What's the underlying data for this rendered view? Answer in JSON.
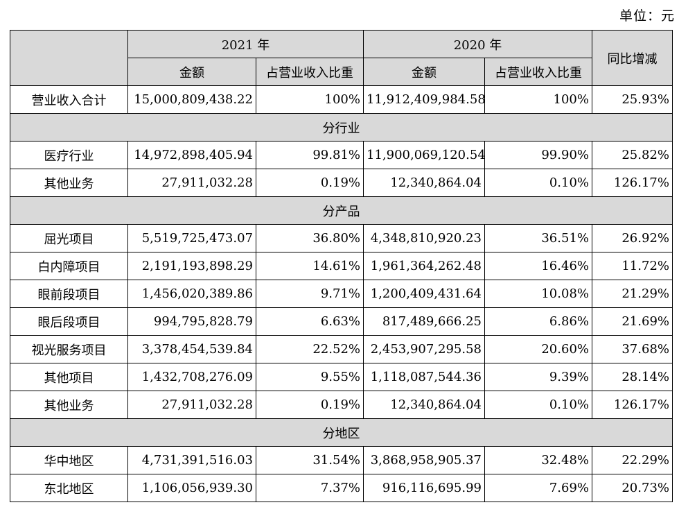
{
  "unit_label": "单位：元",
  "headers": {
    "year_2021": "2021 年",
    "year_2020": "2020 年",
    "amount": "金额",
    "share": "占营业收入比重",
    "yoy": "同比增减"
  },
  "total": {
    "label": "营业收入合计",
    "amt_2021": "15,000,809,438.22",
    "pct_2021": "100%",
    "amt_2020": "11,912,409,984.58",
    "pct_2020": "100%",
    "yoy": "25.93%"
  },
  "sections": [
    {
      "title": "分行业",
      "rows": [
        {
          "label": "医疗行业",
          "amt_2021": "14,972,898,405.94",
          "pct_2021": "99.81%",
          "amt_2020": "11,900,069,120.54",
          "pct_2020": "99.90%",
          "yoy": "25.82%"
        },
        {
          "label": "其他业务",
          "amt_2021": "27,911,032.28",
          "pct_2021": "0.19%",
          "amt_2020": "12,340,864.04",
          "pct_2020": "0.10%",
          "yoy": "126.17%"
        }
      ]
    },
    {
      "title": "分产品",
      "rows": [
        {
          "label": "屈光项目",
          "amt_2021": "5,519,725,473.07",
          "pct_2021": "36.80%",
          "amt_2020": "4,348,810,920.23",
          "pct_2020": "36.51%",
          "yoy": "26.92%"
        },
        {
          "label": "白内障项目",
          "amt_2021": "2,191,193,898.29",
          "pct_2021": "14.61%",
          "amt_2020": "1,961,364,262.48",
          "pct_2020": "16.46%",
          "yoy": "11.72%"
        },
        {
          "label": "眼前段项目",
          "amt_2021": "1,456,020,389.86",
          "pct_2021": "9.71%",
          "amt_2020": "1,200,409,431.64",
          "pct_2020": "10.08%",
          "yoy": "21.29%"
        },
        {
          "label": "眼后段项目",
          "amt_2021": "994,795,828.79",
          "pct_2021": "6.63%",
          "amt_2020": "817,489,666.25",
          "pct_2020": "6.86%",
          "yoy": "21.69%"
        },
        {
          "label": "视光服务项目",
          "amt_2021": "3,378,454,539.84",
          "pct_2021": "22.52%",
          "amt_2020": "2,453,907,295.58",
          "pct_2020": "20.60%",
          "yoy": "37.68%"
        },
        {
          "label": "其他项目",
          "amt_2021": "1,432,708,276.09",
          "pct_2021": "9.55%",
          "amt_2020": "1,118,087,544.36",
          "pct_2020": "9.39%",
          "yoy": "28.14%"
        },
        {
          "label": "其他业务",
          "amt_2021": "27,911,032.28",
          "pct_2021": "0.19%",
          "amt_2020": "12,340,864.04",
          "pct_2020": "0.10%",
          "yoy": "126.17%"
        }
      ]
    },
    {
      "title": "分地区",
      "rows": [
        {
          "label": "华中地区",
          "amt_2021": "4,731,391,516.03",
          "pct_2021": "31.54%",
          "amt_2020": "3,868,958,905.37",
          "pct_2020": "32.48%",
          "yoy": "22.29%"
        },
        {
          "label": "东北地区",
          "amt_2021": "1,106,056,939.30",
          "pct_2021": "7.37%",
          "amt_2020": "916,116,695.99",
          "pct_2020": "7.69%",
          "yoy": "20.73%"
        }
      ]
    }
  ]
}
